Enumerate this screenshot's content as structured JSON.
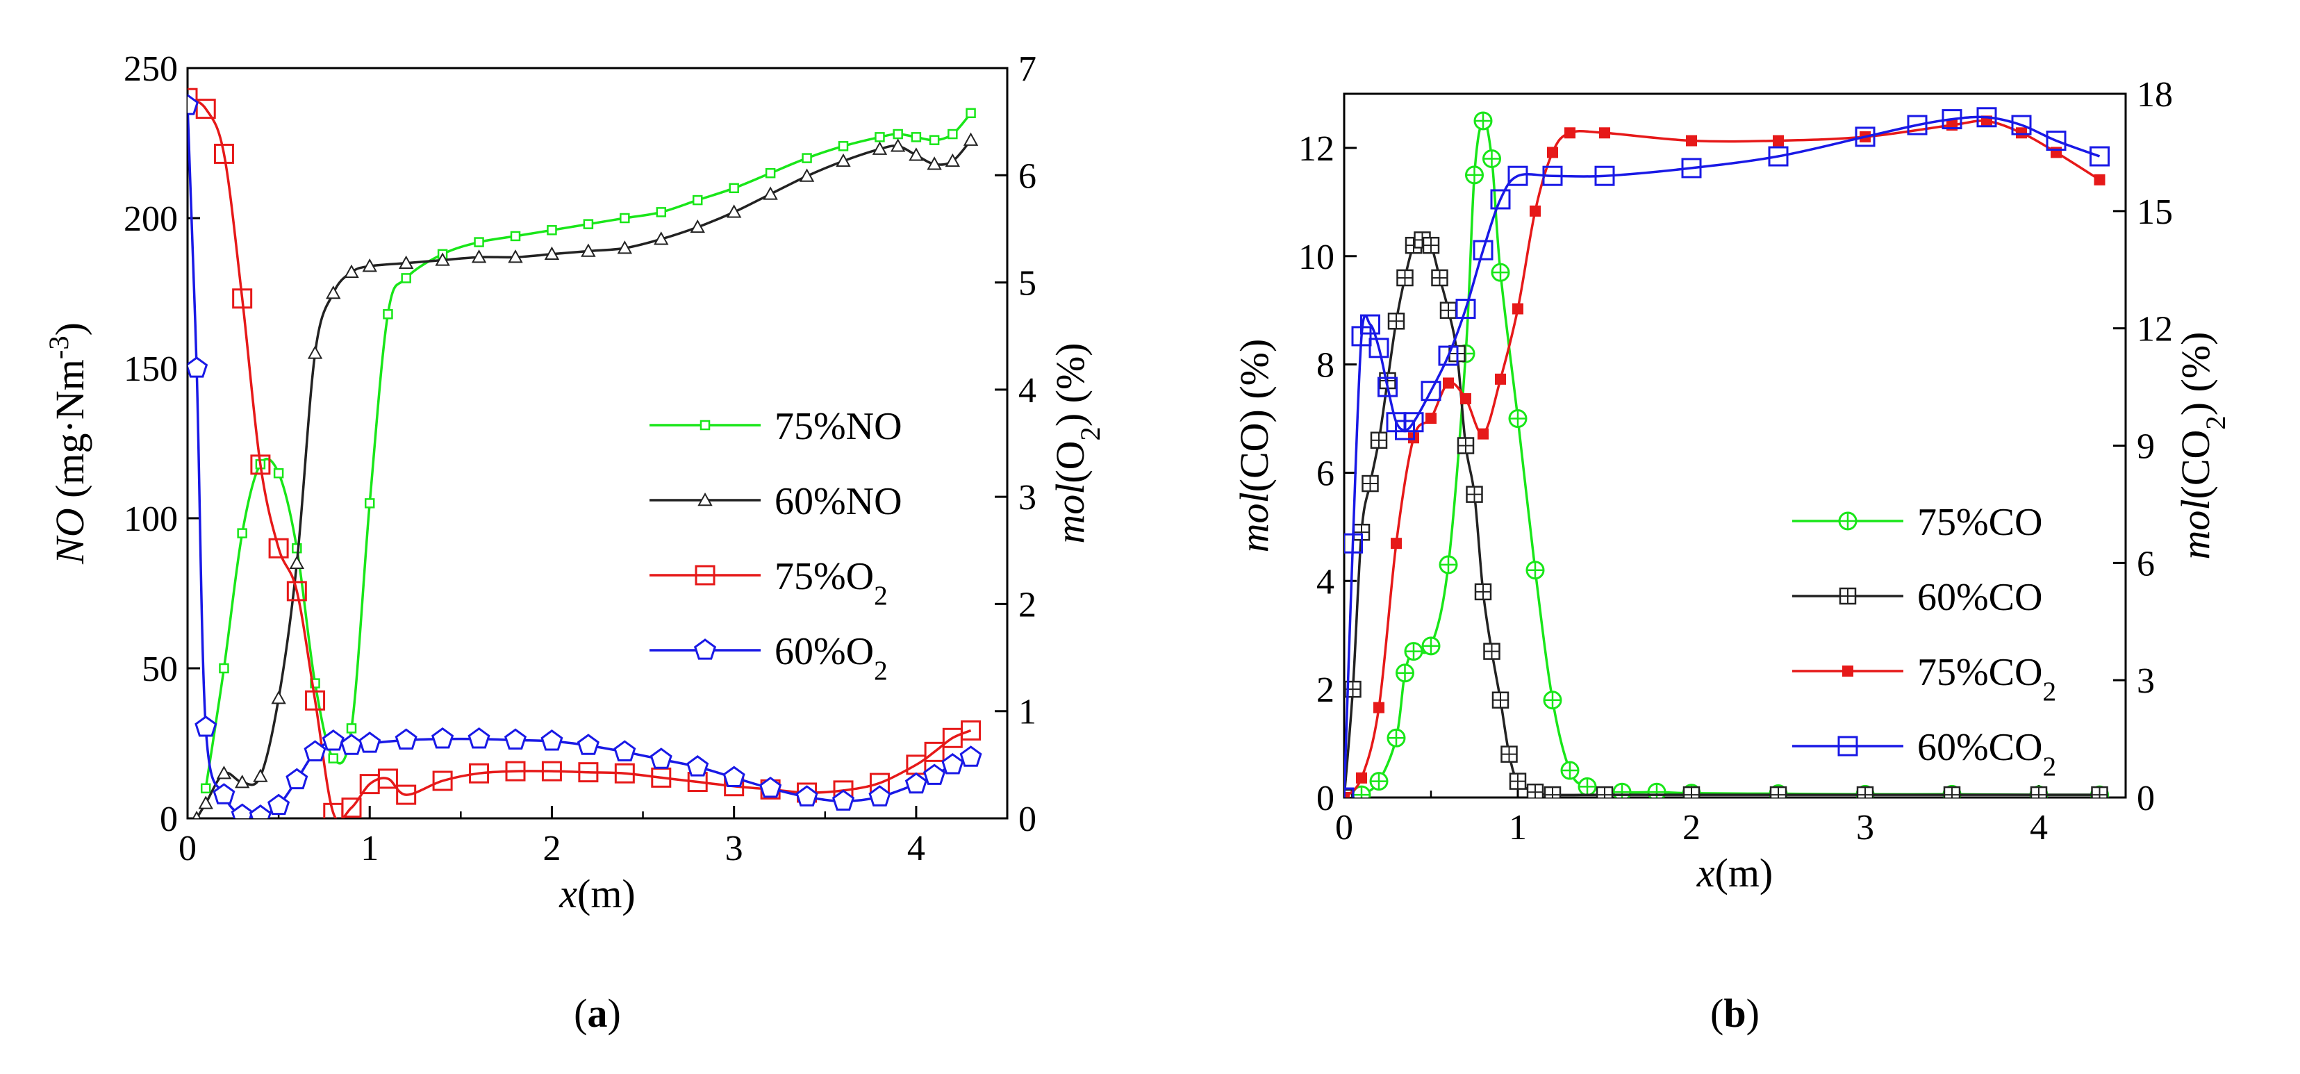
{
  "chart_data": [
    {
      "type": "line",
      "panel_label": "a",
      "title": "",
      "xlabel": "x(m)",
      "ylabel_left": "NO (mg·Nm⁻³)",
      "ylabel_right": "mol(O₂) (%)",
      "xlim": [
        0,
        4.5
      ],
      "ylim_left": [
        0,
        250
      ],
      "ylim_right": [
        0,
        7
      ],
      "x_ticks": [
        0,
        1,
        2,
        3,
        4
      ],
      "y_ticks_left": [
        0,
        50,
        100,
        150,
        200,
        250
      ],
      "y_ticks_right": [
        0,
        1,
        2,
        3,
        4,
        5,
        6,
        7
      ],
      "legend_position": "middle-right",
      "grid": false,
      "series": [
        {
          "name": "75%NO",
          "color": "#19e619",
          "marker": "square",
          "axis": "left",
          "x": [
            0.1,
            0.2,
            0.3,
            0.4,
            0.5,
            0.6,
            0.7,
            0.8,
            0.9,
            1.0,
            1.1,
            1.2,
            1.4,
            1.6,
            1.8,
            2.0,
            2.2,
            2.4,
            2.6,
            2.8,
            3.0,
            3.2,
            3.4,
            3.6,
            3.8,
            3.9,
            4.0,
            4.1,
            4.2,
            4.3
          ],
          "y": [
            10,
            50,
            95,
            118,
            115,
            90,
            45,
            20,
            30,
            105,
            168,
            180,
            188,
            192,
            194,
            196,
            198,
            200,
            202,
            206,
            210,
            215,
            220,
            224,
            227,
            228,
            227,
            226,
            228,
            235
          ]
        },
        {
          "name": "60%NO",
          "color": "#222222",
          "marker": "triangle",
          "axis": "left",
          "x": [
            0.05,
            0.1,
            0.2,
            0.3,
            0.4,
            0.5,
            0.6,
            0.7,
            0.8,
            0.9,
            1.0,
            1.2,
            1.4,
            1.6,
            1.8,
            2.0,
            2.2,
            2.4,
            2.6,
            2.8,
            3.0,
            3.2,
            3.4,
            3.6,
            3.8,
            3.9,
            4.0,
            4.1,
            4.2,
            4.3
          ],
          "y": [
            0,
            5,
            15,
            12,
            14,
            40,
            85,
            155,
            175,
            182,
            184,
            185,
            186,
            187,
            187,
            188,
            189,
            190,
            193,
            197,
            202,
            208,
            214,
            219,
            223,
            224,
            221,
            218,
            219,
            226
          ]
        },
        {
          "name": "75%O₂",
          "color": "#e61919",
          "marker": "square-open",
          "axis": "right",
          "x": [
            0.0,
            0.1,
            0.2,
            0.3,
            0.4,
            0.5,
            0.6,
            0.7,
            0.8,
            0.9,
            1.0,
            1.1,
            1.2,
            1.4,
            1.6,
            1.8,
            2.0,
            2.2,
            2.4,
            2.6,
            2.8,
            3.0,
            3.2,
            3.4,
            3.6,
            3.8,
            4.0,
            4.1,
            4.2,
            4.3
          ],
          "y": [
            6.72,
            6.62,
            6.2,
            4.85,
            3.3,
            2.52,
            2.12,
            1.1,
            0.05,
            0.1,
            0.32,
            0.37,
            0.22,
            0.35,
            0.42,
            0.44,
            0.44,
            0.43,
            0.42,
            0.38,
            0.34,
            0.3,
            0.27,
            0.24,
            0.26,
            0.33,
            0.5,
            0.62,
            0.75,
            0.82
          ]
        },
        {
          "name": "60%O₂",
          "color": "#1919e6",
          "marker": "pentagon",
          "axis": "right",
          "x": [
            0.0,
            0.05,
            0.1,
            0.2,
            0.3,
            0.4,
            0.5,
            0.6,
            0.7,
            0.8,
            0.9,
            1.0,
            1.2,
            1.4,
            1.6,
            1.8,
            2.0,
            2.2,
            2.4,
            2.6,
            2.8,
            3.0,
            3.2,
            3.4,
            3.6,
            3.8,
            4.0,
            4.1,
            4.2,
            4.3
          ],
          "y": [
            6.65,
            4.2,
            0.85,
            0.22,
            0.03,
            0.02,
            0.12,
            0.36,
            0.62,
            0.72,
            0.68,
            0.7,
            0.73,
            0.74,
            0.74,
            0.73,
            0.72,
            0.68,
            0.62,
            0.55,
            0.48,
            0.38,
            0.28,
            0.2,
            0.16,
            0.2,
            0.32,
            0.4,
            0.5,
            0.57
          ]
        }
      ]
    },
    {
      "type": "line",
      "panel_label": "b",
      "title": "",
      "xlabel": "x(m)",
      "ylabel_left": "mol(CO)  (%)",
      "ylabel_right": "mol(CO₂)  (%)",
      "xlim": [
        0,
        4.5
      ],
      "ylim_left": [
        0,
        13
      ],
      "ylim_right": [
        0,
        18
      ],
      "x_ticks": [
        0,
        1,
        2,
        3,
        4
      ],
      "y_ticks_left": [
        0,
        2,
        4,
        6,
        8,
        10,
        12
      ],
      "y_ticks_right": [
        0,
        3,
        6,
        9,
        12,
        15,
        18
      ],
      "legend_position": "lower-right",
      "grid": false,
      "series": [
        {
          "name": "75%CO",
          "color": "#19e619",
          "marker": "circle-cross",
          "axis": "left",
          "x": [
            0.0,
            0.1,
            0.2,
            0.3,
            0.35,
            0.4,
            0.5,
            0.6,
            0.7,
            0.75,
            0.8,
            0.85,
            0.9,
            1.0,
            1.1,
            1.2,
            1.3,
            1.4,
            1.6,
            1.8,
            2.0,
            2.5,
            3.0,
            3.5,
            4.0,
            4.35
          ],
          "y": [
            0,
            0.05,
            0.3,
            1.1,
            2.3,
            2.7,
            2.8,
            4.3,
            8.2,
            11.5,
            12.5,
            11.8,
            9.7,
            7.0,
            4.2,
            1.8,
            0.5,
            0.2,
            0.1,
            0.1,
            0.08,
            0.07,
            0.06,
            0.06,
            0.05,
            0.05
          ]
        },
        {
          "name": "60%CO",
          "color": "#222222",
          "marker": "square-cross",
          "axis": "left",
          "x": [
            0.0,
            0.05,
            0.1,
            0.15,
            0.2,
            0.25,
            0.3,
            0.35,
            0.4,
            0.45,
            0.5,
            0.55,
            0.6,
            0.65,
            0.7,
            0.75,
            0.8,
            0.85,
            0.9,
            0.95,
            1.0,
            1.1,
            1.2,
            1.5,
            2.0,
            2.5,
            3.0,
            3.5,
            4.0,
            4.35
          ],
          "y": [
            0,
            2.0,
            4.9,
            5.8,
            6.6,
            7.7,
            8.8,
            9.6,
            10.2,
            10.3,
            10.2,
            9.6,
            9.0,
            8.2,
            6.5,
            5.6,
            3.8,
            2.7,
            1.8,
            0.8,
            0.3,
            0.1,
            0.05,
            0.05,
            0.05,
            0.05,
            0.05,
            0.05,
            0.05,
            0.05
          ]
        },
        {
          "name": "75%CO₂",
          "color": "#e61919",
          "marker": "square-filled",
          "axis": "right",
          "x": [
            0.0,
            0.1,
            0.2,
            0.3,
            0.4,
            0.5,
            0.6,
            0.7,
            0.8,
            0.9,
            1.0,
            1.1,
            1.2,
            1.3,
            1.5,
            2.0,
            2.5,
            3.0,
            3.5,
            3.7,
            3.9,
            4.1,
            4.35
          ],
          "y": [
            0,
            0.5,
            2.3,
            6.5,
            9.2,
            9.7,
            10.6,
            10.2,
            9.3,
            10.7,
            12.5,
            15.0,
            16.5,
            17.0,
            17.0,
            16.8,
            16.8,
            16.9,
            17.2,
            17.3,
            17.0,
            16.5,
            15.8
          ]
        },
        {
          "name": "60%CO₂",
          "color": "#1919e6",
          "marker": "square-open",
          "axis": "right",
          "x": [
            0.0,
            0.05,
            0.1,
            0.15,
            0.2,
            0.25,
            0.3,
            0.35,
            0.4,
            0.5,
            0.6,
            0.7,
            0.8,
            0.9,
            1.0,
            1.2,
            1.5,
            2.0,
            2.5,
            3.0,
            3.3,
            3.5,
            3.7,
            3.9,
            4.1,
            4.35
          ],
          "y": [
            0,
            6.5,
            11.8,
            12.1,
            11.5,
            10.5,
            9.6,
            9.4,
            9.6,
            10.4,
            11.3,
            12.5,
            14.0,
            15.3,
            15.9,
            15.9,
            15.9,
            16.1,
            16.4,
            16.9,
            17.2,
            17.35,
            17.4,
            17.2,
            16.8,
            16.4
          ]
        }
      ]
    }
  ]
}
